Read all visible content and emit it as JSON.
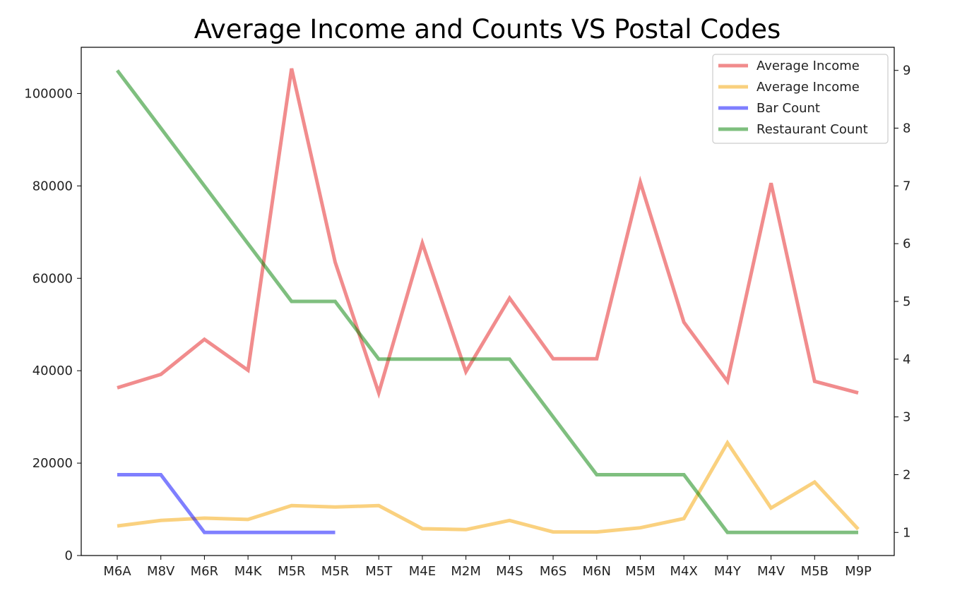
{
  "chart_data": {
    "type": "line",
    "title": "Average Income and Counts VS Postal Codes",
    "xlabel": "",
    "ylabel": "",
    "categories": [
      "M6A",
      "M8V",
      "M6R",
      "M4K",
      "M5R",
      "M5R",
      "M5T",
      "M4E",
      "M2M",
      "M4S",
      "M6S",
      "M6N",
      "M5M",
      "M4X",
      "M4Y",
      "M4V",
      "M5B",
      "M9P"
    ],
    "y_left": {
      "lim": [
        0,
        110000
      ],
      "ticks": [
        0,
        20000,
        40000,
        60000,
        80000,
        100000
      ]
    },
    "y_right": {
      "lim": [
        0.6,
        9.4
      ],
      "ticks": [
        1,
        2,
        3,
        4,
        5,
        6,
        7,
        8,
        9
      ]
    },
    "grid": false,
    "legend_position": "upper right",
    "series": [
      {
        "name": "Average Income",
        "color": "#e41a1c",
        "axis": "left",
        "values": [
          36300,
          39200,
          46800,
          40100,
          105400,
          63500,
          35200,
          67600,
          39800,
          55700,
          42600,
          42600,
          80800,
          50500,
          37700,
          80600,
          37700,
          35200
        ]
      },
      {
        "name": "Average Income",
        "color": "#f5a300",
        "axis": "left",
        "values": [
          6400,
          7600,
          8100,
          7800,
          10800,
          10500,
          10800,
          5800,
          5600,
          7600,
          5100,
          5100,
          6000,
          8000,
          24400,
          10300,
          15900,
          5700
        ]
      },
      {
        "name": "Bar Count",
        "color": "#0000ff",
        "axis": "right",
        "values": [
          2,
          2,
          1,
          1,
          1,
          1,
          null,
          null,
          null,
          null,
          null,
          null,
          null,
          null,
          null,
          null,
          null,
          null
        ]
      },
      {
        "name": "Restaurant Count",
        "color": "#008000",
        "axis": "right",
        "values": [
          9,
          8,
          7,
          6,
          5,
          5,
          4,
          4,
          4,
          4,
          3,
          2,
          2,
          2,
          1,
          1,
          1,
          1
        ]
      }
    ]
  }
}
